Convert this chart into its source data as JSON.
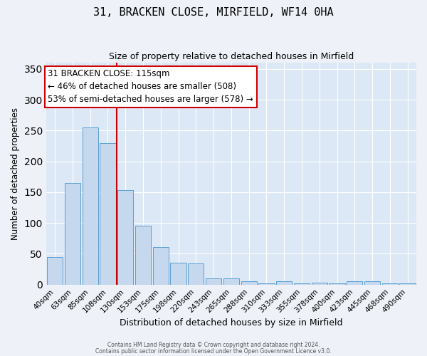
{
  "title": "31, BRACKEN CLOSE, MIRFIELD, WF14 0HA",
  "subtitle": "Size of property relative to detached houses in Mirfield",
  "xlabel": "Distribution of detached houses by size in Mirfield",
  "ylabel": "Number of detached properties",
  "categories": [
    "40sqm",
    "63sqm",
    "85sqm",
    "108sqm",
    "130sqm",
    "153sqm",
    "175sqm",
    "198sqm",
    "220sqm",
    "243sqm",
    "265sqm",
    "288sqm",
    "310sqm",
    "333sqm",
    "355sqm",
    "378sqm",
    "400sqm",
    "423sqm",
    "445sqm",
    "468sqm",
    "490sqm"
  ],
  "values": [
    45,
    165,
    255,
    230,
    153,
    96,
    61,
    35,
    34,
    10,
    10,
    5,
    2,
    5,
    2,
    3,
    2,
    5,
    5,
    2,
    2
  ],
  "bar_color": "#c5d8ed",
  "bar_edge_color": "#5a9fd4",
  "vline_color": "#cc0000",
  "annotation_text": "31 BRACKEN CLOSE: 115sqm\n← 46% of detached houses are smaller (508)\n53% of semi-detached houses are larger (578) →",
  "annotation_box_color": "#ffffff",
  "annotation_box_edge": "#cc0000",
  "ylim": [
    0,
    360
  ],
  "yticks": [
    0,
    50,
    100,
    150,
    200,
    250,
    300,
    350
  ],
  "footer_line1": "Contains HM Land Registry data © Crown copyright and database right 2024.",
  "footer_line2": "Contains public sector information licensed under the Open Government Licence v3.0.",
  "background_color": "#eef2f8",
  "plot_bg_color": "#dce8f5"
}
